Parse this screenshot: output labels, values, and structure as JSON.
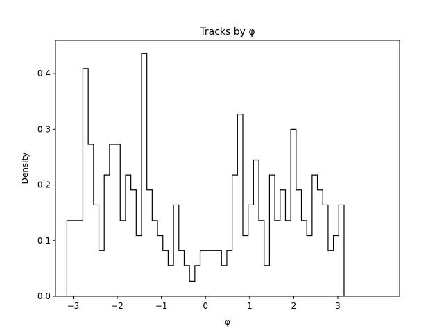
{
  "chart_data": {
    "type": "histogram",
    "title": "Tracks by φ",
    "xlabel": "φ",
    "ylabel": "Density",
    "xlim": [
      -3.4,
      4.4
    ],
    "ylim": [
      0,
      0.46
    ],
    "xticks": [
      -3,
      -2,
      -1,
      0,
      1,
      2,
      3
    ],
    "xtick_labels": [
      "−3",
      "−2",
      "−1",
      "0",
      "1",
      "2",
      "3"
    ],
    "yticks": [
      0.0,
      0.1,
      0.2,
      0.3,
      0.4
    ],
    "ytick_labels": [
      "0.0",
      "0.1",
      "0.2",
      "0.3",
      "0.4"
    ],
    "bin_range": [
      -3.14159,
      3.14159
    ],
    "values": [
      0.136,
      0.136,
      0.136,
      0.409,
      0.273,
      0.164,
      0.082,
      0.218,
      0.273,
      0.273,
      0.136,
      0.218,
      0.191,
      0.109,
      0.436,
      0.191,
      0.136,
      0.109,
      0.082,
      0.055,
      0.164,
      0.082,
      0.055,
      0.027,
      0.055,
      0.082,
      0.082,
      0.082,
      0.082,
      0.055,
      0.082,
      0.218,
      0.327,
      0.109,
      0.164,
      0.245,
      0.136,
      0.055,
      0.218,
      0.136,
      0.191,
      0.136,
      0.3,
      0.191,
      0.136,
      0.109,
      0.218,
      0.191,
      0.164,
      0.082,
      0.109,
      0.164
    ],
    "histtype": "step",
    "color": "#000000",
    "grid": false
  }
}
